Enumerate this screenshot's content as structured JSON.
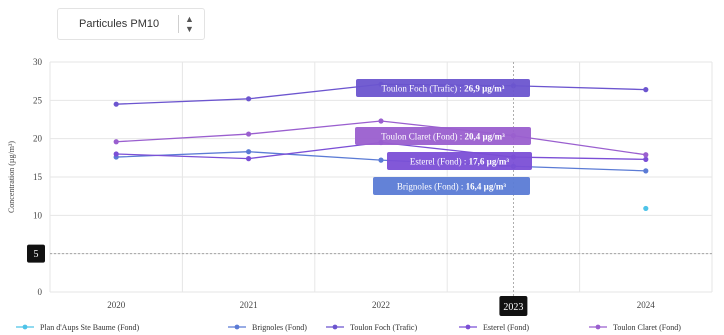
{
  "selector": {
    "value": "Particules PM10",
    "arrows_icon": "chevron-up-down-icon"
  },
  "chart_data": {
    "type": "line",
    "title": "",
    "xlabel": "",
    "ylabel": "Concentration (µg/m³)",
    "x": [
      "2020",
      "2021",
      "2022",
      "2023",
      "2024"
    ],
    "ylim": [
      0,
      30
    ],
    "yticks": [
      "0",
      "5",
      "10",
      "15",
      "20",
      "25",
      "30"
    ],
    "grid": true,
    "legend_position": "bottom",
    "series": [
      {
        "name": "Plan d'Aups Ste Baume (Fond)",
        "color": "#4ec3e8",
        "values": [
          null,
          null,
          null,
          null,
          10.9
        ]
      },
      {
        "name": "Brignoles (Fond)",
        "color": "#5b7bd5",
        "values": [
          17.6,
          18.3,
          17.2,
          16.4,
          15.8
        ]
      },
      {
        "name": "Toulon Foch (Trafic)",
        "color": "#6c55cf",
        "values": [
          24.5,
          25.2,
          27.1,
          26.9,
          26.4
        ]
      },
      {
        "name": "Esterel (Fond)",
        "color": "#7b4fd6",
        "values": [
          18.0,
          17.4,
          19.5,
          17.6,
          17.3
        ]
      },
      {
        "name": "Toulon Claret (Fond)",
        "color": "#9a5fcf",
        "values": [
          19.6,
          20.6,
          22.3,
          20.4,
          17.9
        ]
      }
    ],
    "tooltips": [
      {
        "series": "Toulon Foch (Trafic)",
        "label": "Toulon Foch (Trafic) :",
        "value": "26,9 µg/m³",
        "color": "#6c55cf",
        "x_index": 3
      },
      {
        "series": "Toulon Claret (Fond)",
        "label": "Toulon Claret (Fond) :",
        "value": "20,4 µg/m³",
        "color": "#9a5fcf",
        "x_index": 3
      },
      {
        "series": "Esterel (Fond)",
        "label": "Esterel (Fond) :",
        "value": "17,6 µg/m³",
        "color": "#7b4fd6",
        "x_index": 3
      },
      {
        "series": "Brignoles (Fond)",
        "label": "Brignoles (Fond) :",
        "value": "16,4 µg/m³",
        "color": "#5b7bd5",
        "x_index": 3
      }
    ],
    "crosshair": {
      "x_label": "2023",
      "y_label": "5"
    }
  }
}
